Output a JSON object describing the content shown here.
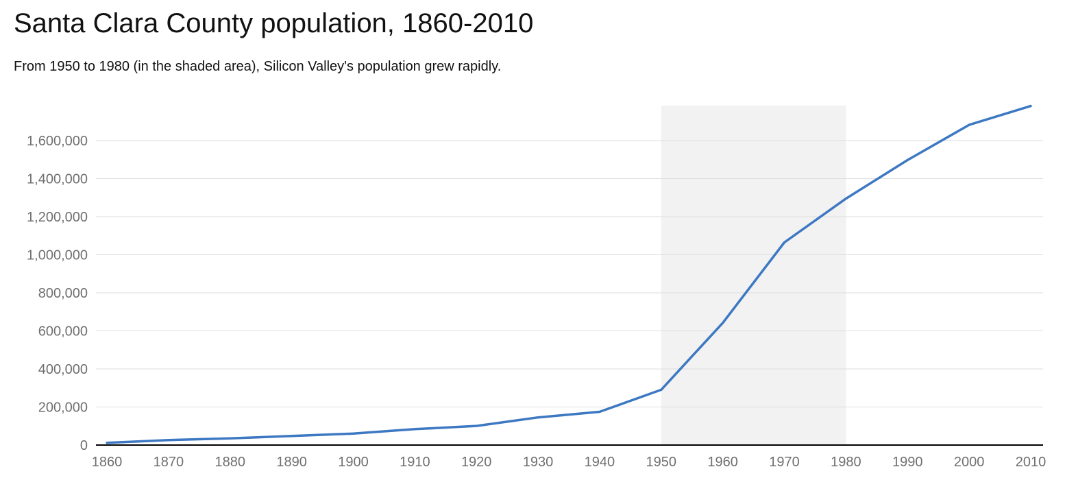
{
  "chart_data": {
    "type": "line",
    "title": "Santa Clara County population, 1860-2010",
    "subtitle": "From 1950 to 1980 (in the shaded area), Silicon Valley's population grew rapidly.",
    "xlabel": "",
    "ylabel": "",
    "x": [
      1860,
      1870,
      1880,
      1890,
      1900,
      1910,
      1920,
      1930,
      1940,
      1950,
      1960,
      1970,
      1980,
      1990,
      2000,
      2010
    ],
    "series": [
      {
        "values": [
          11912,
          26246,
          35039,
          48005,
          60216,
          83539,
          100676,
          145118,
          174949,
          290547,
          642315,
          1064714,
          1295071,
          1497577,
          1682585,
          1781642
        ]
      }
    ],
    "xlim": [
      1860,
      2010
    ],
    "ylim": [
      0,
      1781642
    ],
    "x_ticks": [
      "1860",
      "1870",
      "1880",
      "1890",
      "1900",
      "1910",
      "1920",
      "1930",
      "1940",
      "1950",
      "1960",
      "1970",
      "1980",
      "1990",
      "2000",
      "2010"
    ],
    "y_ticks": [
      0,
      200000,
      400000,
      600000,
      800000,
      1000000,
      1200000,
      1400000,
      1600000
    ],
    "y_tick_labels": [
      "0",
      "200,000",
      "400,000",
      "600,000",
      "800,000",
      "1,000,000",
      "1,200,000",
      "1,400,000",
      "1,600,000"
    ],
    "shaded_range": [
      1950,
      1980
    ],
    "grid": true,
    "legend": "none",
    "colors": {
      "line": "#3d78c2",
      "shade": "#f2f2f2",
      "grid": "#dddddd",
      "axis": "#000000",
      "tick_text": "#6f6f6f"
    }
  }
}
